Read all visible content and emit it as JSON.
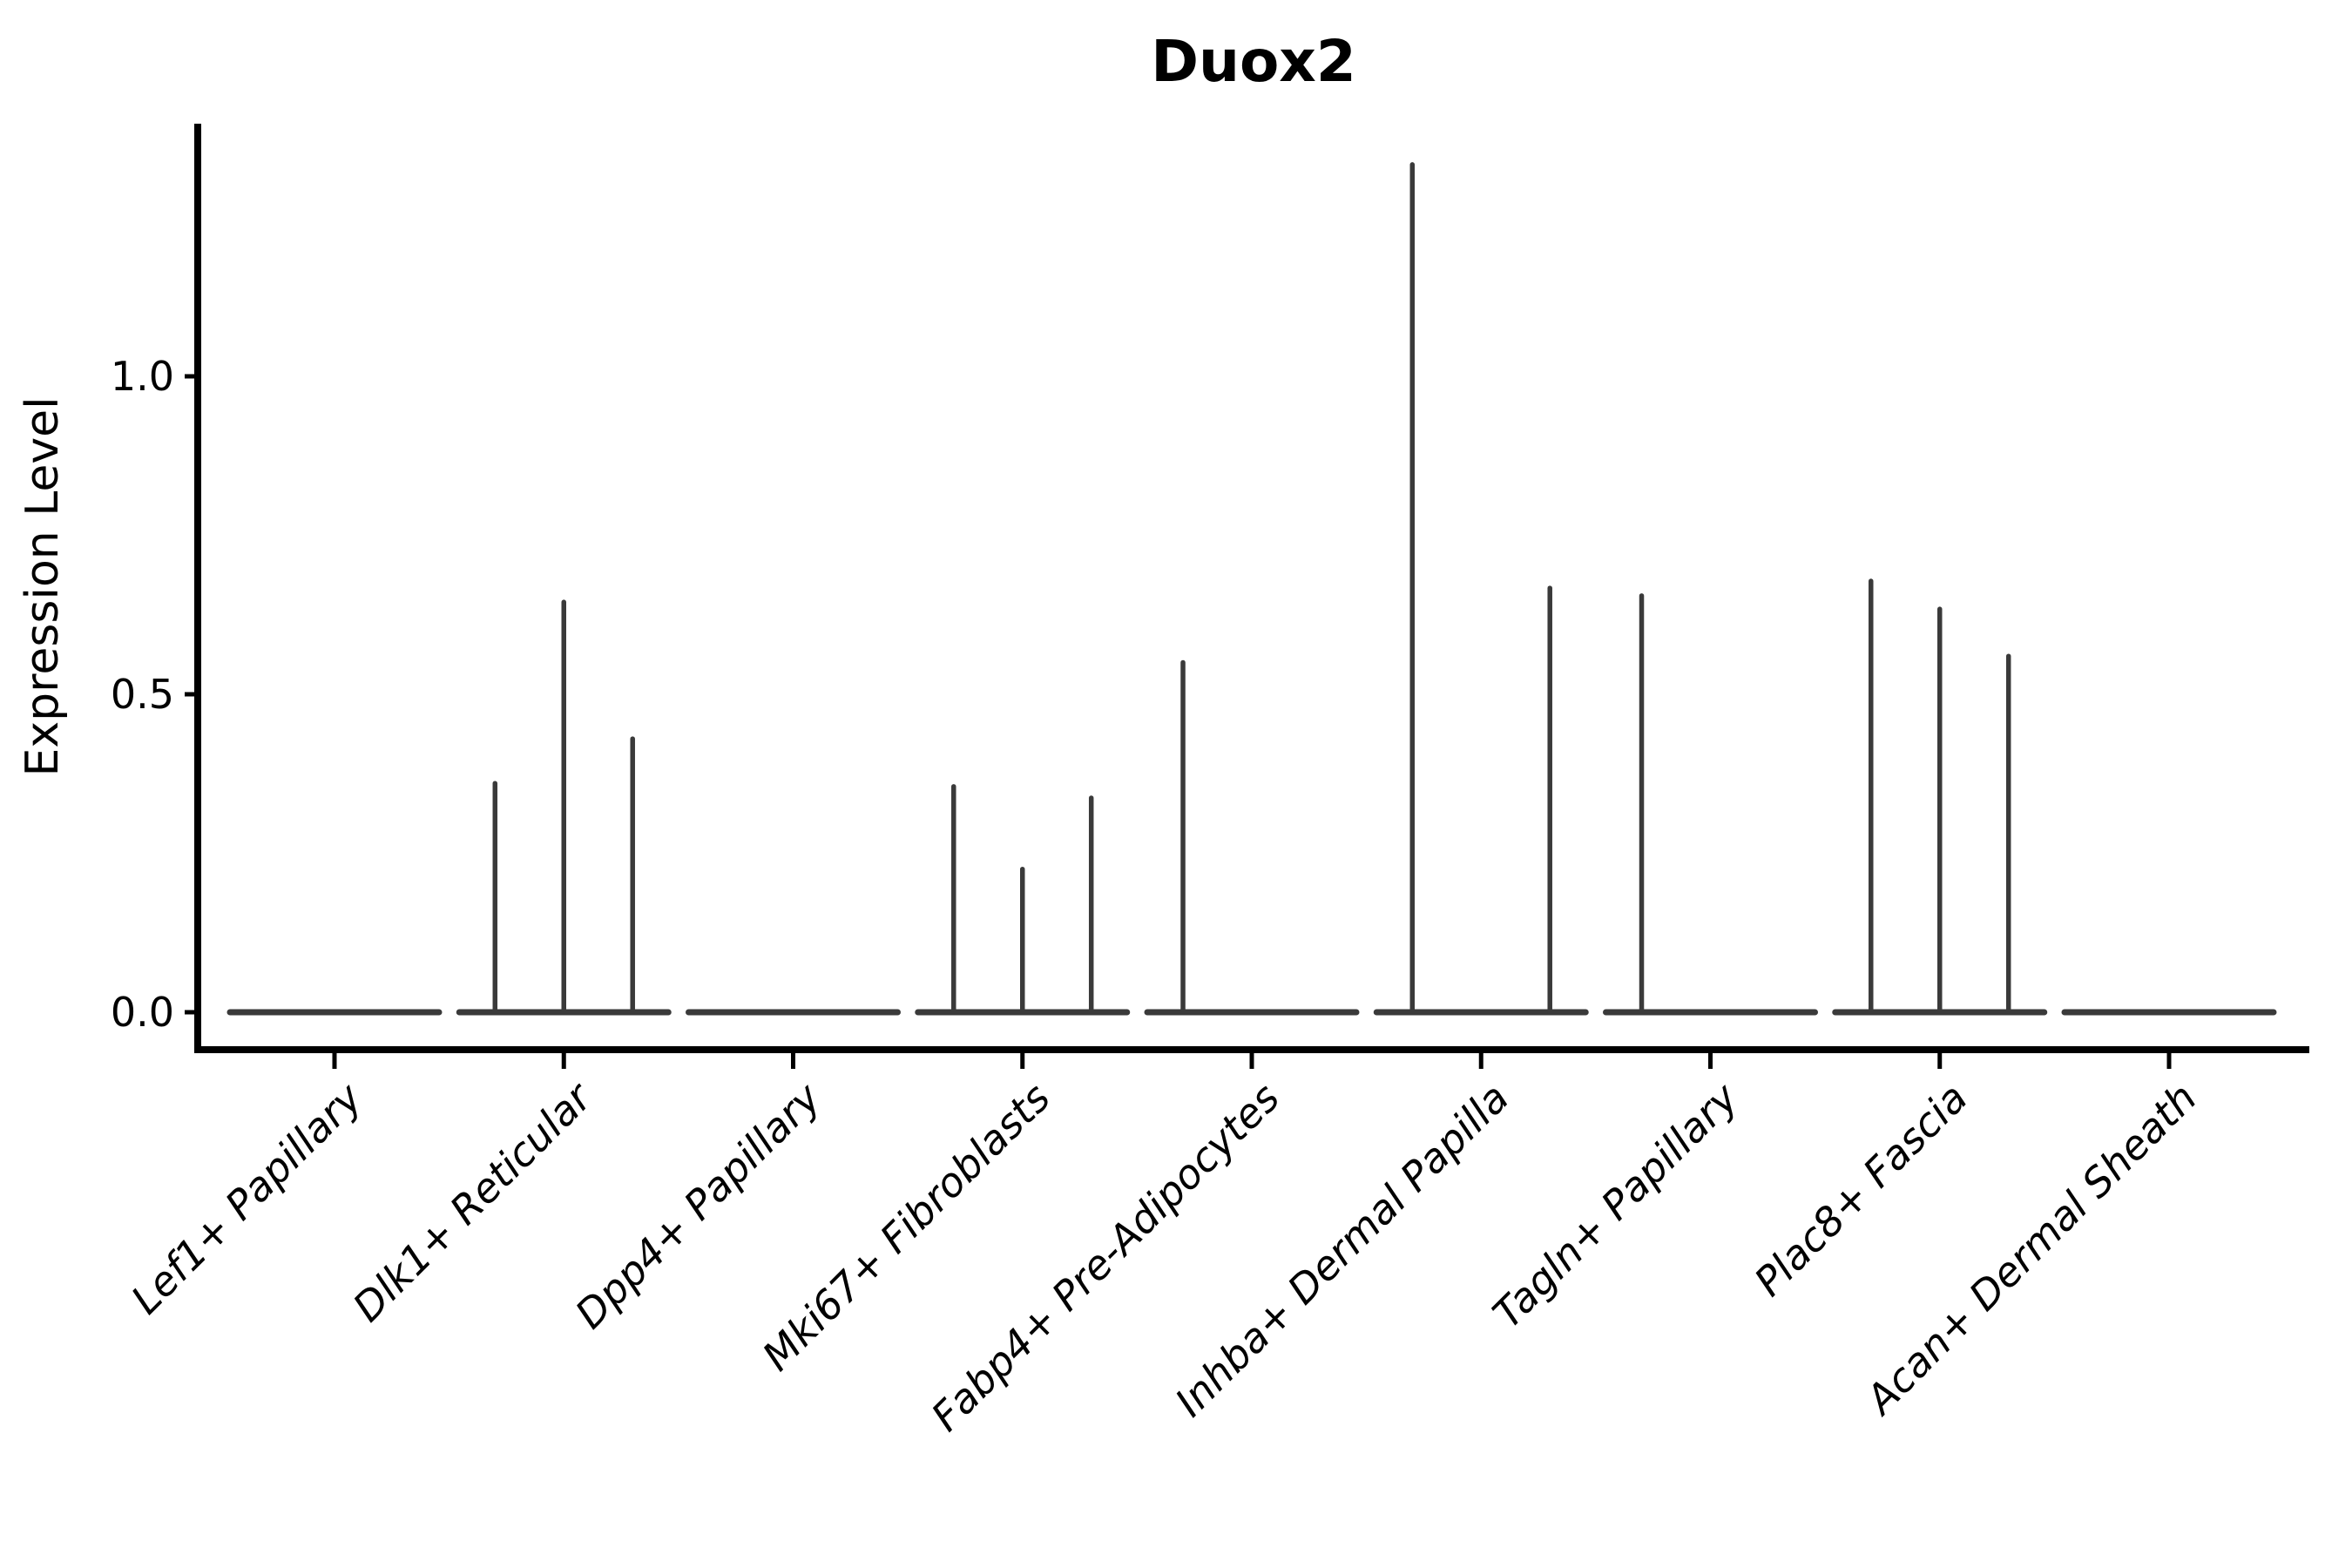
{
  "title": "Duox2",
  "chart_data": {
    "type": "violin",
    "title": "Duox2",
    "ylabel": "Expression Level",
    "xlabel": "",
    "yticks": [
      0.0,
      0.5,
      1.0
    ],
    "ytick_labels": [
      "0.0",
      "0.5",
      "1.0"
    ],
    "ylim": [
      -0.06,
      1.4
    ],
    "xlim_units": [
      -0.6,
      8.6
    ],
    "grid": false,
    "legend_position": "none",
    "categories": [
      "Lef1+ Papillary",
      "Dlk1+ Reticular",
      "Dpp4+ Papillary",
      "Mki67+ Fibroblasts",
      "Fabp4+ Pre-Adipocytes",
      "Inhba+ Dermal Papilla",
      "Tagln+ Papillary",
      "Plac8+ Fascia",
      "Acan+ Dermal Sheath"
    ],
    "violins": [
      {
        "category": "Lef1+ Papillary",
        "baseline": 0.0,
        "spikes": []
      },
      {
        "category": "Dlk1+ Reticular",
        "baseline": 0.0,
        "spikes": [
          {
            "offset": -0.3,
            "value": 0.36
          },
          {
            "offset": 0.0,
            "value": 0.645
          },
          {
            "offset": 0.3,
            "value": 0.43
          }
        ]
      },
      {
        "category": "Dpp4+ Papillary",
        "baseline": 0.0,
        "spikes": []
      },
      {
        "category": "Mki67+ Fibroblasts",
        "baseline": 0.0,
        "spikes": [
          {
            "offset": -0.3,
            "value": 0.355
          },
          {
            "offset": 0.0,
            "value": 0.225
          },
          {
            "offset": 0.3,
            "value": 0.337
          }
        ]
      },
      {
        "category": "Fabp4+ Pre-Adipocytes",
        "baseline": 0.0,
        "spikes": [
          {
            "offset": -0.3,
            "value": 0.55
          }
        ]
      },
      {
        "category": "Inhba+ Dermal Papilla",
        "baseline": 0.0,
        "spikes": [
          {
            "offset": -0.3,
            "value": 1.333
          },
          {
            "offset": 0.3,
            "value": 0.667
          }
        ]
      },
      {
        "category": "Tagln+ Papillary",
        "baseline": 0.0,
        "spikes": [
          {
            "offset": -0.3,
            "value": 0.655
          }
        ]
      },
      {
        "category": "Plac8+ Fascia",
        "baseline": 0.0,
        "spikes": [
          {
            "offset": -0.3,
            "value": 0.678
          },
          {
            "offset": 0.0,
            "value": 0.634
          },
          {
            "offset": 0.3,
            "value": 0.56
          }
        ]
      },
      {
        "category": "Acan+ Dermal Sheath",
        "baseline": 0.0,
        "spikes": []
      }
    ],
    "colors": {
      "violin": "#3a3a3a",
      "axis": "#000000",
      "background": "#ffffff"
    }
  }
}
